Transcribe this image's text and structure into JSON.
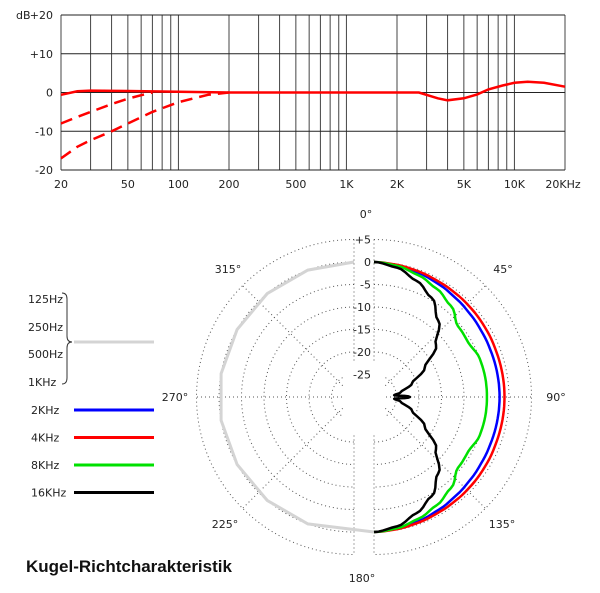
{
  "chart_data": [
    {
      "type": "line",
      "xscale": "log",
      "xlim": [
        20,
        20000
      ],
      "ylim": [
        -20,
        20
      ],
      "ylabel": "dB",
      "grid": true,
      "x_tick_labels": [
        {
          "v": 20,
          "label": "20"
        },
        {
          "v": 50,
          "label": "50"
        },
        {
          "v": 100,
          "label": "100"
        },
        {
          "v": 200,
          "label": "200"
        },
        {
          "v": 500,
          "label": "500"
        },
        {
          "v": 1000,
          "label": "1K"
        },
        {
          "v": 2000,
          "label": "2K"
        },
        {
          "v": 5000,
          "label": "5K"
        },
        {
          "v": 10000,
          "label": "10K"
        },
        {
          "v": 20000,
          "label": "20KHz"
        }
      ],
      "y_tick_labels": [
        {
          "v": 20,
          "label": "+20"
        },
        {
          "v": 10,
          "label": "+10"
        },
        {
          "v": 0,
          "label": "0"
        },
        {
          "v": -10,
          "label": "-10"
        },
        {
          "v": -20,
          "label": "-20"
        }
      ],
      "color": "#ff0000",
      "series": [
        {
          "style": "solid",
          "x": [
            20,
            25,
            30,
            50,
            100,
            200,
            1000,
            2700,
            3500,
            4000,
            5000,
            6000,
            7000,
            8500,
            10000,
            12000,
            15000,
            20000
          ],
          "y": [
            -0.6,
            0.3,
            0.5,
            0.4,
            0.2,
            0,
            0,
            0,
            -1.5,
            -2,
            -1.5,
            -0.5,
            0.8,
            1.8,
            2.5,
            2.8,
            2.5,
            1.5
          ]
        },
        {
          "style": "dashed",
          "x": [
            20,
            25,
            30,
            40,
            50,
            60,
            70
          ],
          "y": [
            -8,
            -6.3,
            -5,
            -3,
            -1.6,
            -0.7,
            0
          ]
        },
        {
          "style": "dashed",
          "x": [
            20,
            25,
            30,
            40,
            50,
            70,
            100,
            150,
            200
          ],
          "y": [
            -17,
            -14,
            -12.3,
            -10,
            -8,
            -5,
            -2.5,
            -0.6,
            0
          ]
        }
      ]
    },
    {
      "type": "polar",
      "title": "Kugel-Richtcharakteristik",
      "rlim_db": [
        -30,
        5
      ],
      "ring_labels": [
        "+5",
        "0",
        "-5",
        "-10",
        "-15",
        "-20",
        "-25"
      ],
      "angle_labels": [
        "0°",
        "45°",
        "90°",
        "135°",
        "180°",
        "225°",
        "270°",
        "315°"
      ],
      "grid": true,
      "legend_placement": "left",
      "group_legend": {
        "labels": [
          "125Hz",
          "250Hz",
          "500Hz",
          "1KHz"
        ],
        "color": "#d4d4d4",
        "angles_deg": [
          180,
          200,
          220,
          240,
          260,
          280,
          300,
          320,
          340,
          360
        ],
        "db": [
          0,
          0,
          0,
          0,
          0,
          0,
          0,
          0,
          0,
          0
        ]
      },
      "series": [
        {
          "name": "2KHz",
          "color": "#0000ff",
          "angles_deg": [
            0,
            10,
            20,
            30,
            40,
            50,
            60,
            70,
            80,
            90,
            100,
            110,
            120,
            130,
            140,
            150,
            160,
            170,
            180
          ],
          "db": [
            0,
            -0.3,
            -0.7,
            -1.1,
            -1.5,
            -1.8,
            -2,
            -2.1,
            -2.1,
            -2.1,
            -2.1,
            -2.1,
            -2,
            -1.8,
            -1.5,
            -1.1,
            -0.7,
            -0.3,
            0
          ]
        },
        {
          "name": "4KHz",
          "color": "#ff0000",
          "angles_deg": [
            0,
            10,
            20,
            30,
            40,
            50,
            60,
            70,
            80,
            90,
            100,
            110,
            120,
            130,
            140,
            150,
            160,
            170,
            180
          ],
          "db": [
            0,
            -0.2,
            -0.4,
            -0.6,
            -0.7,
            -0.8,
            -0.9,
            -1,
            -1,
            -1,
            -1,
            -1,
            -0.9,
            -0.8,
            -0.7,
            -0.6,
            -0.4,
            -0.2,
            0
          ]
        },
        {
          "name": "8KHz",
          "color": "#00e000",
          "angles_deg": [
            0,
            10,
            20,
            30,
            40,
            50,
            60,
            70,
            80,
            90,
            100,
            110,
            120,
            130,
            140,
            150,
            160,
            170,
            180
          ],
          "db": [
            0,
            -0.4,
            -1.2,
            -2.2,
            -3.5,
            -5.6,
            -5.8,
            -5,
            -4.9,
            -4.9,
            -4.9,
            -5,
            -5.8,
            -5.6,
            -3.5,
            -2.2,
            -1.2,
            -0.4,
            0
          ]
        },
        {
          "name": "16KHz",
          "color": "#000000",
          "angles_deg": [
            0,
            10,
            20,
            30,
            40,
            50,
            60,
            70,
            80,
            85,
            90,
            95,
            100,
            110,
            120,
            130,
            140,
            150,
            160,
            170,
            180
          ],
          "db": [
            0,
            -0.8,
            -2.5,
            -4.5,
            -7.8,
            -12,
            -17,
            -21,
            -24,
            -25.5,
            -22,
            -25.5,
            -24,
            -21,
            -17,
            -12,
            -7.8,
            -4.5,
            -2.5,
            -0.8,
            0
          ]
        }
      ]
    }
  ]
}
